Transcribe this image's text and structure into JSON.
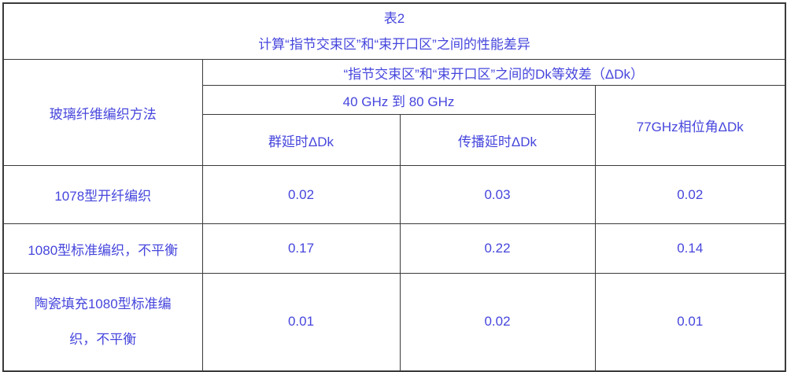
{
  "accent_color": "#4646dd",
  "border_color": "#3a3a3a",
  "table": {
    "title": "表2",
    "subtitle": "计算“指节交束区”和“束开口区”之间的性能差异",
    "method_header": "玻璃纤维编织方法",
    "dk_diff_header": "“指节交束区”和“束开口区”之间的Dk等效差（ΔDk）",
    "freq_range_header": "40 GHz 到  80 GHz",
    "phase_header": "77GHz相位角ΔDk",
    "group_delay_header": "群延时ΔDk",
    "prop_delay_header": "传播延时ΔDk",
    "rows": [
      {
        "label": "1078型开纤编织",
        "values": [
          "0.02",
          "0.03",
          "0.02"
        ]
      },
      {
        "label": "1080型标准编织，不平衡",
        "values": [
          "0.17",
          "0.22",
          "0.14"
        ]
      },
      {
        "label": "陶瓷填充1080型标准编\n织，不平衡",
        "values": [
          "0.01",
          "0.02",
          "0.01"
        ]
      }
    ]
  },
  "chart_data": {
    "type": "table",
    "title": "表2",
    "subtitle": "计算“指节交束区”和“束开口区”之间的性能差异",
    "column_groups": [
      {
        "label": "“指节交束区”和“束开口区”之间的Dk等效差（ΔDk）",
        "children": [
          "40 GHz 到 80 GHz: 群延时ΔDk",
          "40 GHz 到 80 GHz: 传播延时ΔDk",
          "77GHz相位角ΔDk"
        ]
      }
    ],
    "columns": [
      "玻璃纤维编织方法",
      "群延时ΔDk",
      "传播延时ΔDk",
      "77GHz相位角ΔDk"
    ],
    "rows": [
      [
        "1078型开纤编织",
        0.02,
        0.03,
        0.02
      ],
      [
        "1080型标准编织，不平衡",
        0.17,
        0.22,
        0.14
      ],
      [
        "陶瓷填充1080型标准编织，不平衡",
        0.01,
        0.02,
        0.01
      ]
    ]
  }
}
